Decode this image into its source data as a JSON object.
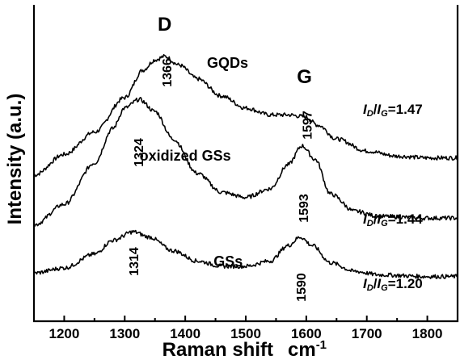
{
  "chart_data": {
    "type": "line",
    "xlabel": "Raman shift",
    "xunit": "cm",
    "xunit_exp": "-1",
    "ylabel": "Intensity (a.u.)",
    "xlim": [
      1150,
      1850
    ],
    "xticks": [
      "1200",
      "1300",
      "1400",
      "1500",
      "1600",
      "1700",
      "1800"
    ],
    "y_ticks_shown": false,
    "grid": false,
    "peak_letters": [
      {
        "text": "D",
        "x": 1366
      },
      {
        "text": "G",
        "x": 1597
      }
    ],
    "series": [
      {
        "name": "GQDs",
        "ratio_label": "=1.47",
        "peaks": [
          {
            "label": "1366",
            "x": 1366
          },
          {
            "label": "1597",
            "x": 1597
          }
        ],
        "x": [
          1150,
          1200,
          1250,
          1300,
          1330,
          1350,
          1366,
          1390,
          1420,
          1460,
          1500,
          1540,
          1570,
          1597,
          1620,
          1650,
          1700,
          1750,
          1800,
          1850
        ],
        "y": [
          4.25,
          4.85,
          5.5,
          6.5,
          7.3,
          7.6,
          7.7,
          7.45,
          7.05,
          6.55,
          6.2,
          6.0,
          6.0,
          5.95,
          5.7,
          5.3,
          4.95,
          4.8,
          4.75,
          4.75
        ]
      },
      {
        "name": "oxidized GSs",
        "ratio_label": "=1.44",
        "peaks": [
          {
            "label": "1324",
            "x": 1324
          },
          {
            "label": "1593",
            "x": 1593
          }
        ],
        "x": [
          1150,
          1200,
          1250,
          1280,
          1300,
          1324,
          1350,
          1380,
          1420,
          1460,
          1500,
          1540,
          1570,
          1593,
          1615,
          1640,
          1680,
          1720,
          1800,
          1850
        ],
        "y": [
          2.8,
          3.4,
          4.6,
          5.6,
          6.2,
          6.45,
          6.1,
          5.3,
          4.3,
          3.75,
          3.6,
          3.85,
          4.55,
          5.1,
          4.7,
          3.7,
          3.2,
          3.05,
          3.0,
          3.0
        ]
      },
      {
        "name": "GSs",
        "ratio_label": "=1.20",
        "peaks": [
          {
            "label": "1314",
            "x": 1314
          },
          {
            "label": "1590",
            "x": 1590
          }
        ],
        "x": [
          1150,
          1200,
          1250,
          1280,
          1314,
          1340,
          1380,
          1420,
          1460,
          1500,
          1540,
          1570,
          1590,
          1610,
          1640,
          1680,
          1720,
          1800,
          1850
        ],
        "y": [
          1.4,
          1.55,
          1.95,
          2.35,
          2.6,
          2.45,
          2.05,
          1.75,
          1.6,
          1.6,
          1.75,
          2.2,
          2.45,
          2.2,
          1.7,
          1.45,
          1.35,
          1.3,
          1.3
        ]
      }
    ]
  }
}
